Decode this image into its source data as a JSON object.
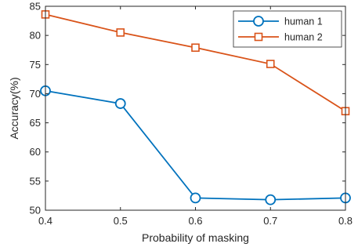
{
  "chart_data": {
    "type": "line",
    "title": "",
    "xlabel": "Probability of masking",
    "ylabel": "Accuracy(%)",
    "x": [
      0.4,
      0.5,
      0.6,
      0.7,
      0.8
    ],
    "xticks": [
      "0.4",
      "0.5",
      "0.6",
      "0.7",
      "0.8"
    ],
    "yticks": [
      "50",
      "55",
      "60",
      "65",
      "70",
      "75",
      "80",
      "85"
    ],
    "xlim": [
      0.4,
      0.8
    ],
    "ylim": [
      50,
      85
    ],
    "grid": false,
    "legend_position": "top-right",
    "series": [
      {
        "name": "human 1",
        "marker": "circle",
        "color": "#0072BD",
        "values": [
          70.5,
          68.3,
          52.1,
          51.8,
          52.1
        ]
      },
      {
        "name": "human 2",
        "marker": "square",
        "color": "#D95319",
        "values": [
          83.6,
          80.5,
          77.9,
          75.1,
          67.0
        ]
      }
    ]
  }
}
